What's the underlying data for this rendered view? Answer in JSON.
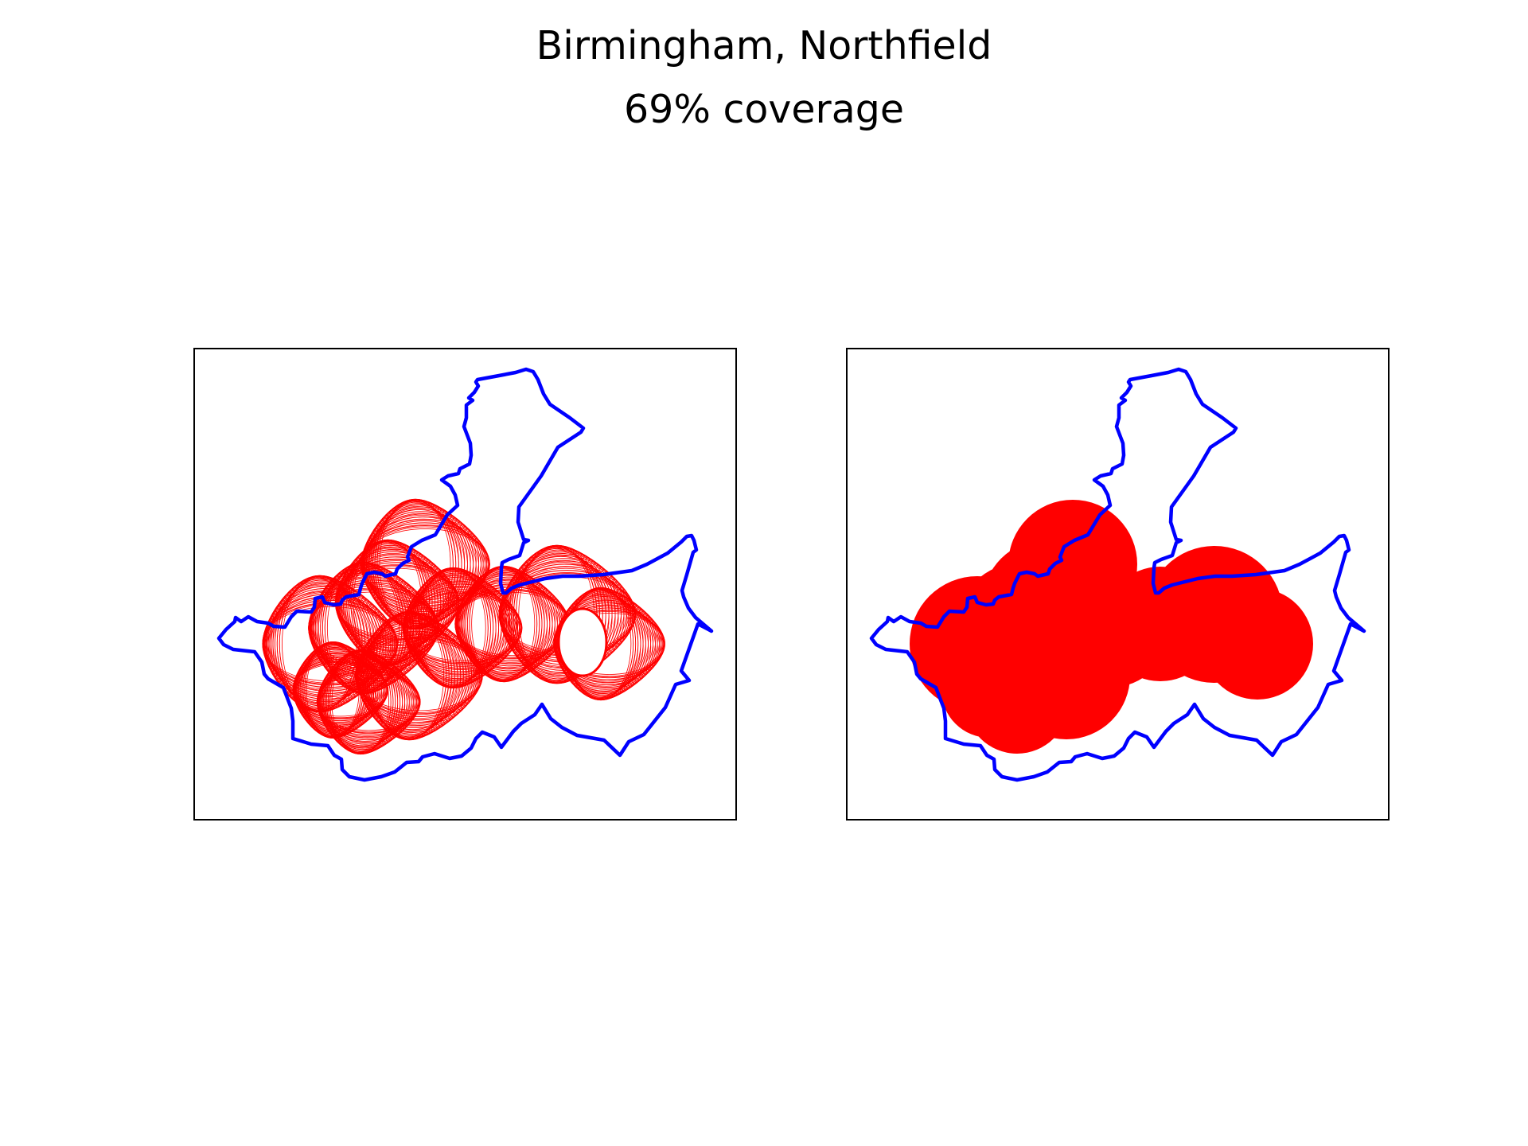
{
  "figure": {
    "title": "Birmingham, Northfield",
    "subtitle": "69% coverage"
  },
  "colors": {
    "boundary": "#0000ff",
    "circles": "#ff0000",
    "frame": "#000000",
    "background": "#ffffff"
  },
  "panels": [
    {
      "name": "panel-left",
      "circle_style": "outline"
    },
    {
      "name": "panel-right",
      "circle_style": "filled"
    }
  ]
}
